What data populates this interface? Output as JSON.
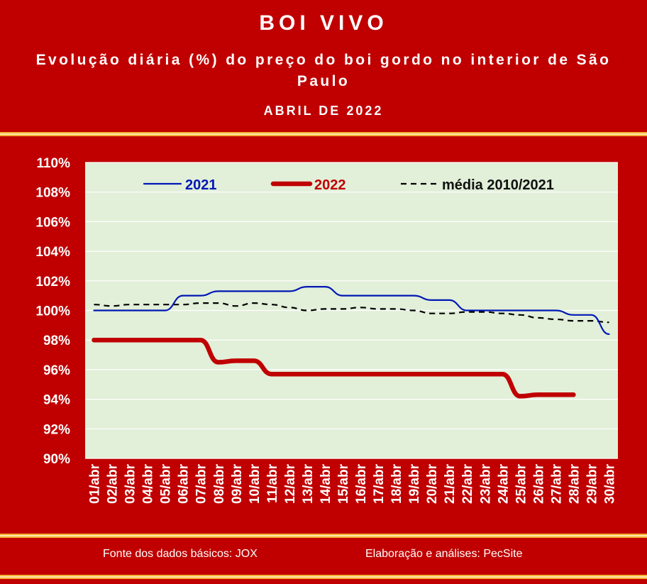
{
  "header": {
    "title": "BOI VIVO",
    "subtitle": "Evolução diária (%) do preço do boi gordo no interior de São Paulo",
    "period": "ABRIL DE 2022"
  },
  "footer": {
    "source": "Fonte dos dados básicos: JOX",
    "credit": "Elaboração e análises: PecSite"
  },
  "colors": {
    "background": "#c00000",
    "plot_background": "#e2efd9",
    "series_2021": "#0018b4",
    "series_2022": "#c00000",
    "series_media": "#000000"
  },
  "chart_data": {
    "type": "line",
    "categories": [
      "01/abr",
      "02/abr",
      "03/abr",
      "04/abr",
      "05/abr",
      "06/abr",
      "07/abr",
      "08/abr",
      "09/abr",
      "10/abr",
      "11/abr",
      "12/abr",
      "13/abr",
      "14/abr",
      "15/abr",
      "16/abr",
      "17/abr",
      "18/abr",
      "19/abr",
      "20/abr",
      "21/abr",
      "22/abr",
      "23/abr",
      "24/abr",
      "25/abr",
      "26/abr",
      "27/abr",
      "28/abr",
      "29/abr",
      "30/abr"
    ],
    "ylim": [
      90,
      110
    ],
    "yticks": [
      "90%",
      "92%",
      "94%",
      "96%",
      "98%",
      "100%",
      "102%",
      "104%",
      "106%",
      "108%",
      "110%"
    ],
    "grid": "horizontal",
    "legend_position": "top",
    "series": [
      {
        "name": "2021",
        "style": "thin-solid",
        "values": [
          100.0,
          100.0,
          100.0,
          100.0,
          100.0,
          101.0,
          101.0,
          101.3,
          101.3,
          101.3,
          101.3,
          101.3,
          101.6,
          101.6,
          101.0,
          101.0,
          101.0,
          101.0,
          101.0,
          100.7,
          100.7,
          100.0,
          100.0,
          100.0,
          100.0,
          100.0,
          100.0,
          99.7,
          99.7,
          98.4
        ]
      },
      {
        "name": "2022",
        "style": "thick-solid",
        "values": [
          98.0,
          98.0,
          98.0,
          98.0,
          98.0,
          98.0,
          98.0,
          96.5,
          96.6,
          96.6,
          95.7,
          95.7,
          95.7,
          95.7,
          95.7,
          95.7,
          95.7,
          95.7,
          95.7,
          95.7,
          95.7,
          95.7,
          95.7,
          95.7,
          94.2,
          94.3,
          94.3,
          94.3,
          null,
          null
        ]
      },
      {
        "name": "média 2010/2021",
        "style": "dashed",
        "values": [
          100.4,
          100.3,
          100.4,
          100.4,
          100.4,
          100.4,
          100.5,
          100.5,
          100.3,
          100.5,
          100.4,
          100.2,
          100.0,
          100.1,
          100.1,
          100.2,
          100.1,
          100.1,
          100.0,
          99.8,
          99.8,
          99.9,
          99.9,
          99.8,
          99.7,
          99.5,
          99.4,
          99.3,
          99.3,
          99.2
        ]
      }
    ]
  }
}
